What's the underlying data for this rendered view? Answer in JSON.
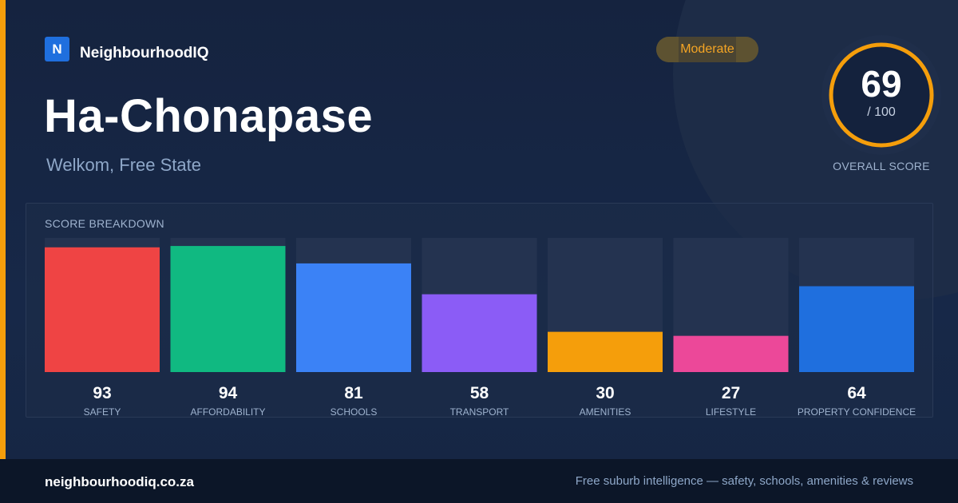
{
  "brand": {
    "logo_letter": "N",
    "name": "NeighbourhoodIQ"
  },
  "suburb": {
    "name": "Ha-Chonapase",
    "location": "Welkom, Free State"
  },
  "badge": {
    "label": "Moderate",
    "color": "#f5a524"
  },
  "overall": {
    "score": "69",
    "max_label": "/ 100",
    "score_value": 69,
    "max_value": 100,
    "caption": "OVERALL SCORE",
    "ring_color": "#f59e0b"
  },
  "breakdown": {
    "title": "SCORE BREAKDOWN"
  },
  "chart_data": {
    "type": "bar",
    "title": "SCORE BREAKDOWN",
    "ylim": [
      0,
      100
    ],
    "grid": false,
    "categories": [
      "SAFETY",
      "AFFORDABILITY",
      "SCHOOLS",
      "TRANSPORT",
      "AMENITIES",
      "LIFESTYLE",
      "PROPERTY CONFIDENCE"
    ],
    "values": [
      93,
      94,
      81,
      58,
      30,
      27,
      64
    ],
    "value_labels": [
      "93",
      "94",
      "81",
      "58",
      "30",
      "27",
      "64"
    ],
    "colors": [
      "#ef4444",
      "#10b981",
      "#3b82f6",
      "#8b5cf6",
      "#f59e0b",
      "#ec4899",
      "#1f6fde"
    ]
  },
  "footer": {
    "url": "neighbourhoodiq.co.za",
    "tagline": "Free suburb intelligence — safety, schools, amenities & reviews"
  },
  "colors": {
    "accent": "#f59e0b",
    "background": "#15233f",
    "track": "#243350"
  }
}
